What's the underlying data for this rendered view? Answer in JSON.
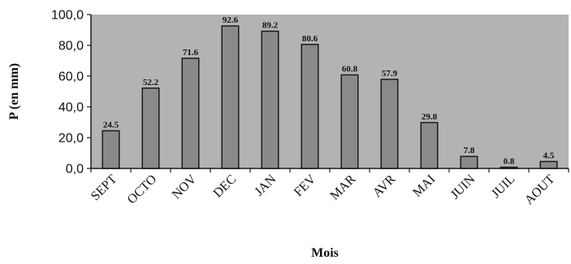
{
  "chart_data": {
    "type": "bar",
    "title": "",
    "xlabel": "Mois",
    "ylabel": "P (en mm)",
    "categories": [
      "SEPT",
      "OCTO",
      "NOV",
      "DEC",
      "JAN",
      "FEV",
      "MAR",
      "AVR",
      "MAI",
      "JUIN",
      "JUIL",
      "AOUT"
    ],
    "values": [
      24.5,
      52.2,
      71.6,
      92.6,
      89.2,
      80.6,
      60.8,
      57.9,
      29.8,
      7.8,
      0.8,
      4.5
    ],
    "value_labels": [
      "24.5",
      "52.2",
      "71.6",
      "92.6",
      "89.2",
      "80.6",
      "60.8",
      "57.9",
      "29.8",
      "7.8",
      "0.8",
      "4.5"
    ],
    "ylim": [
      0,
      100
    ],
    "yticks": [
      "0,0",
      "20,0",
      "40,0",
      "60,0",
      "80,0",
      "100,0"
    ],
    "grid": false,
    "legend": "none",
    "colors": {
      "plot_background": "#b3b3b3",
      "bar_fill": "#8a8a8a",
      "bar_stroke": "#1a1a1a",
      "axis": "#1a1a1a"
    }
  }
}
